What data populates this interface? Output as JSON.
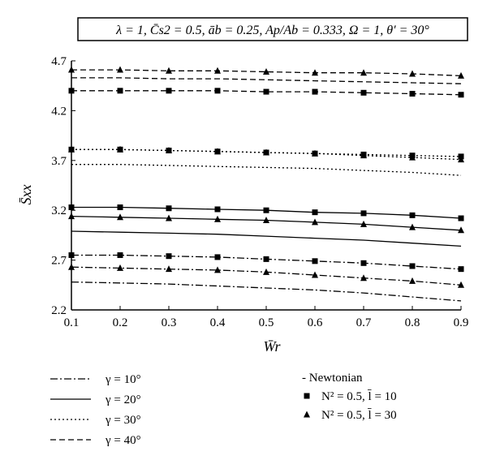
{
  "chart_data": {
    "type": "line",
    "title": "λ = 1, C̄s2 = 0.5, āb = 0.25, Ap/Ab = 0.333, Ω = 1, θ′ = 30°",
    "xlabel": "W̄r",
    "ylabel": "S̄xx",
    "xlim": [
      0.1,
      0.9
    ],
    "ylim": [
      2.2,
      4.7
    ],
    "x_ticks": [
      "0.1",
      "0.2",
      "0.3",
      "0.4",
      "0.5",
      "0.6",
      "0.7",
      "0.8",
      "0.9"
    ],
    "y_ticks": [
      "2.2",
      "2.7",
      "3.2",
      "3.7",
      "4.2",
      "4.7"
    ],
    "grid": false,
    "legend_line_styles": [
      {
        "label": "γ = 10°",
        "style": "dash-dot"
      },
      {
        "label": "γ = 20°",
        "style": "solid"
      },
      {
        "label": "γ = 30°",
        "style": "dotted"
      },
      {
        "label": "γ = 40°",
        "style": "dashed"
      }
    ],
    "legend_markers": [
      {
        "label": "- Newtonian",
        "marker": "none"
      },
      {
        "label": "N² = 0.5, l̄ = 10",
        "marker": "square"
      },
      {
        "label": "N² = 0.5, l̄ = 30",
        "marker": "triangle"
      }
    ],
    "x": [
      0.1,
      0.2,
      0.3,
      0.4,
      0.5,
      0.6,
      0.7,
      0.8,
      0.9
    ],
    "series": [
      {
        "gamma": "10°",
        "case": "Newtonian",
        "style": "dash-dot",
        "marker": "none",
        "values": [
          2.48,
          2.47,
          2.46,
          2.44,
          2.42,
          2.4,
          2.37,
          2.33,
          2.29
        ]
      },
      {
        "gamma": "10°",
        "case": "l=10",
        "style": "dash-dot",
        "marker": "square",
        "values": [
          2.75,
          2.75,
          2.74,
          2.73,
          2.71,
          2.69,
          2.67,
          2.64,
          2.61
        ]
      },
      {
        "gamma": "10°",
        "case": "l=30",
        "style": "dash-dot",
        "marker": "triangle",
        "values": [
          2.63,
          2.62,
          2.61,
          2.6,
          2.58,
          2.55,
          2.52,
          2.49,
          2.45
        ]
      },
      {
        "gamma": "20°",
        "case": "Newtonian",
        "style": "solid",
        "marker": "none",
        "values": [
          2.99,
          2.98,
          2.97,
          2.96,
          2.94,
          2.92,
          2.9,
          2.87,
          2.84
        ]
      },
      {
        "gamma": "20°",
        "case": "l=10",
        "style": "solid",
        "marker": "square",
        "values": [
          3.23,
          3.23,
          3.22,
          3.21,
          3.2,
          3.18,
          3.17,
          3.15,
          3.12
        ]
      },
      {
        "gamma": "20°",
        "case": "l=30",
        "style": "solid",
        "marker": "triangle",
        "values": [
          3.14,
          3.13,
          3.12,
          3.11,
          3.1,
          3.08,
          3.06,
          3.03,
          3.0
        ]
      },
      {
        "gamma": "30°",
        "case": "Newtonian",
        "style": "dotted",
        "marker": "none",
        "values": [
          3.66,
          3.66,
          3.65,
          3.64,
          3.63,
          3.62,
          3.6,
          3.58,
          3.55
        ]
      },
      {
        "gamma": "30°",
        "case": "l=10",
        "style": "dotted",
        "marker": "square",
        "values": [
          3.81,
          3.81,
          3.8,
          3.79,
          3.78,
          3.77,
          3.76,
          3.75,
          3.74
        ]
      },
      {
        "gamma": "30°",
        "case": "l=30",
        "style": "dotted",
        "marker": "triangle",
        "values": [
          3.81,
          3.81,
          3.8,
          3.79,
          3.78,
          3.77,
          3.75,
          3.73,
          3.71
        ]
      },
      {
        "gamma": "40°",
        "case": "Newtonian",
        "style": "dashed",
        "marker": "none",
        "values": [
          4.53,
          4.53,
          4.52,
          4.52,
          4.51,
          4.5,
          4.49,
          4.48,
          4.47
        ]
      },
      {
        "gamma": "40°",
        "case": "l=10",
        "style": "dashed",
        "marker": "square",
        "values": [
          4.4,
          4.4,
          4.4,
          4.4,
          4.39,
          4.39,
          4.38,
          4.37,
          4.36
        ]
      },
      {
        "gamma": "40°",
        "case": "l=30",
        "style": "dashed",
        "marker": "triangle",
        "values": [
          4.61,
          4.61,
          4.6,
          4.6,
          4.59,
          4.58,
          4.58,
          4.57,
          4.55
        ]
      }
    ]
  }
}
